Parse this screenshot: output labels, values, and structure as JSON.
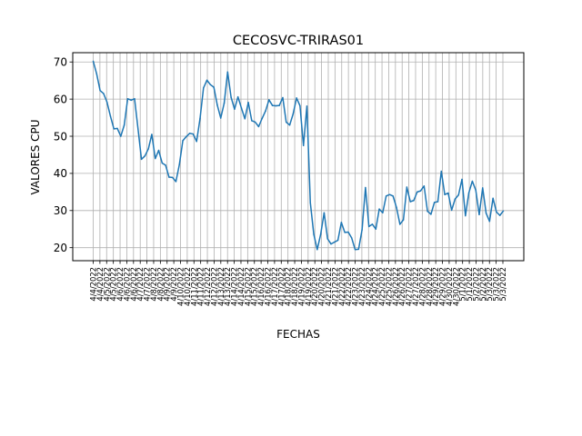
{
  "chart_data": {
    "type": "line",
    "title": "CECOSVC-TRIRAS01",
    "xlabel": "FECHAS",
    "ylabel": "VALORES CPU",
    "ylim": [
      16.5,
      72.5
    ],
    "yticks": [
      20,
      30,
      40,
      50,
      60,
      70
    ],
    "grid": true,
    "color": "#1f77b4",
    "xtick_labels": [
      "4/4/2022",
      "4/4/2022",
      "4/5/2022",
      "4/5/2022",
      "4/6/2022",
      "4/6/2022",
      "4/6/2022",
      "4/7/2022",
      "4/7/2022",
      "4/8/2022",
      "4/8/2022",
      "4/9/2022",
      "4/9/2022",
      "4/10/2022",
      "4/10/2022",
      "4/11/2022",
      "4/11/2022",
      "4/12/2022",
      "4/12/2022",
      "4/13/2022",
      "4/13/2022",
      "4/14/2022",
      "4/14/2022",
      "4/15/2022",
      "4/15/2022",
      "4/16/2022",
      "4/16/2022",
      "4/17/2022",
      "4/17/2022",
      "4/18/2022",
      "4/18/2022",
      "4/19/2022",
      "4/19/2022",
      "4/20/2022",
      "4/20/2022",
      "4/21/2022",
      "4/21/2022",
      "4/22/2022",
      "4/22/2022",
      "4/23/2022",
      "4/23/2022",
      "4/24/2022",
      "4/24/2022",
      "4/25/2022",
      "4/25/2022",
      "4/26/2022",
      "4/26/2022",
      "4/27/2022",
      "4/27/2022",
      "4/28/2022",
      "4/28/2022",
      "4/29/2022",
      "4/29/2022",
      "4/30/2022",
      "4/30/2022",
      "5/1/2022",
      "5/1/2022",
      "5/2/2022",
      "5/2/2022",
      "5/3/2022",
      "5/3/2022",
      "5/3/2022"
    ],
    "series": [
      {
        "values": [
          70.2,
          66.8,
          62.3,
          61.5,
          59.2,
          55.4,
          52.0,
          52.1,
          50.0,
          53.0,
          60.1,
          59.7,
          60.1,
          52.0,
          43.8,
          44.7,
          46.6,
          50.5,
          44.0,
          46.2,
          42.8,
          42.2,
          39.0,
          38.9,
          37.8,
          42.4,
          48.8,
          49.9,
          50.8,
          50.6,
          48.6,
          54.8,
          63.0,
          65.1,
          63.9,
          63.2,
          58.4,
          54.9,
          58.9,
          67.3,
          60.5,
          57.3,
          60.6,
          57.6,
          54.7,
          59.1,
          54.2,
          53.8,
          52.6,
          54.8,
          56.8,
          59.8,
          58.3,
          58.2,
          58.3,
          60.4,
          53.8,
          53.0,
          56.0,
          60.3,
          58.2,
          47.5,
          58.1,
          32.1,
          23.6,
          19.5,
          23.6,
          29.4,
          22.4,
          21.0,
          21.5,
          22.0,
          26.8,
          24.1,
          24.2,
          22.6,
          19.5,
          19.6,
          24.8,
          36.2,
          25.7,
          26.3,
          25.0,
          30.4,
          29.4,
          33.9,
          34.3,
          33.9,
          30.8,
          26.3,
          27.5,
          36.3,
          32.4,
          32.7,
          35.0,
          35.3,
          36.6,
          29.8,
          29.0,
          32.2,
          32.4,
          40.6,
          34.3,
          34.7,
          30.1,
          33.1,
          34.2,
          38.4,
          28.6,
          34.8,
          37.9,
          35.5,
          28.9,
          36.1,
          29.3,
          27.1,
          33.3,
          29.6,
          28.7,
          29.9
        ]
      }
    ]
  }
}
